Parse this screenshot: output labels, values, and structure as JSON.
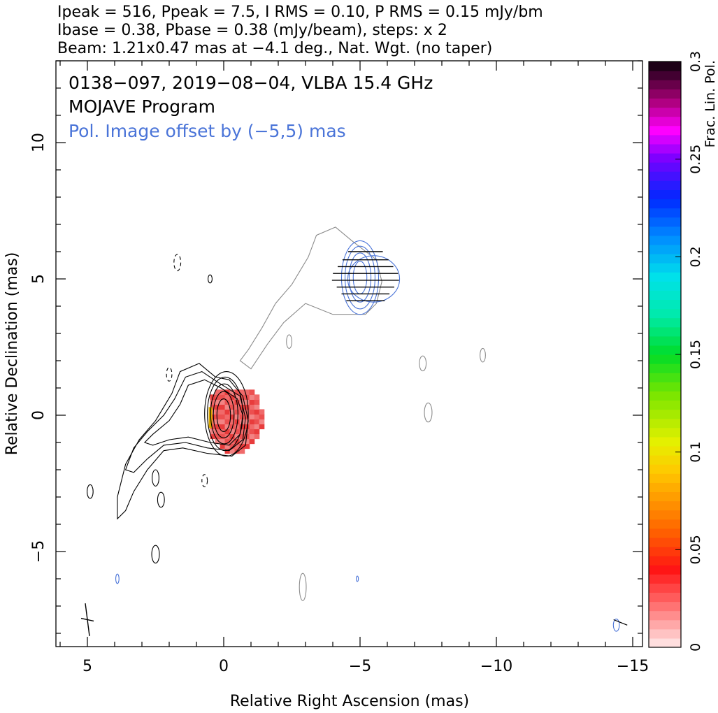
{
  "header": {
    "line1": "Ipeak = 516, Ppeak = 7.5, I RMS = 0.10, P RMS = 0.15 mJy/bm",
    "line2": "Ibase = 0.38, Pbase = 0.38 (mJy/beam), steps: x 2",
    "line3": "Beam: 1.21x0.47 mas at −4.1 deg., Nat. Wgt. (no taper)"
  },
  "plot": {
    "title": "0138−097, 2019−08−04, VLBA 15.4 GHz",
    "subtitle": "MOJAVE Program",
    "note": "Pol. Image offset by (−5,5) mas"
  },
  "colorbar": {
    "label": "Frac. Lin. Pol.",
    "ticks": [
      "0",
      "0.05",
      "0.1",
      "0.15",
      "0.2",
      "0.25",
      "0.3"
    ]
  },
  "chart_data": {
    "type": "contour",
    "title": "0138−097, 2019−08−04, VLBA 15.4 GHz",
    "xlabel": "Relative Right Ascension (mas)",
    "ylabel": "Relative Declination (mas)",
    "xlim": [
      6.1,
      -15.4
    ],
    "ylim": [
      -8.5,
      13.4
    ],
    "xticks": [
      5,
      0,
      -5,
      -10,
      -15
    ],
    "xtick_labels": [
      "5",
      "0",
      "−5",
      "−10",
      "−15"
    ],
    "yticks": [
      -5,
      0,
      5,
      10
    ],
    "ytick_labels": [
      "−5",
      "0",
      "5",
      "10"
    ],
    "x_reversed": true,
    "colorbar": {
      "label": "Frac. Lin. Pol.",
      "range": [
        0,
        0.3
      ]
    },
    "stokes_I": {
      "peak_mJy_per_beam": 516,
      "rms": 0.1,
      "base": 0.38,
      "core_position_mas": [
        0,
        0
      ],
      "core_levels": [
        {
          "x": 0,
          "y": 0,
          "rx": 0.25,
          "ry": 0.6
        },
        {
          "x": 0,
          "y": 0.02,
          "rx": 0.38,
          "ry": 0.85
        },
        {
          "x": -0.02,
          "y": 0.05,
          "rx": 0.5,
          "ry": 1.1
        },
        {
          "x": -0.05,
          "y": 0.05,
          "rx": 0.65,
          "ry": 1.35
        },
        {
          "x": -0.1,
          "y": 0.05,
          "rx": 0.8,
          "ry": 1.55
        }
      ],
      "outer_contours": [
        [
          [
            0.3,
            1.4
          ],
          [
            0.9,
            1.9
          ],
          [
            1.6,
            1.6
          ],
          [
            1.9,
            0.8
          ],
          [
            2.2,
            0.3
          ],
          [
            2.5,
            -0.2
          ],
          [
            3.1,
            -0.9
          ],
          [
            3.6,
            -1.8
          ],
          [
            3.9,
            -3.0
          ],
          [
            3.9,
            -3.8
          ],
          [
            3.6,
            -3.5
          ],
          [
            3.3,
            -2.8
          ],
          [
            2.8,
            -2.0
          ],
          [
            2.2,
            -1.3
          ],
          [
            1.5,
            -1.2
          ],
          [
            0.6,
            -1.4
          ],
          [
            -0.3,
            -1.5
          ],
          [
            -0.8,
            -1.1
          ],
          [
            -0.9,
            -0.2
          ],
          [
            -0.7,
            0.7
          ],
          [
            -0.2,
            1.3
          ]
        ],
        [
          [
            0.2,
            1.2
          ],
          [
            0.8,
            1.6
          ],
          [
            1.4,
            1.4
          ],
          [
            1.8,
            0.6
          ],
          [
            2.2,
            0.0
          ],
          [
            2.8,
            -0.6
          ],
          [
            3.3,
            -1.2
          ],
          [
            3.6,
            -2.0
          ],
          [
            3.3,
            -2.1
          ],
          [
            2.8,
            -1.6
          ],
          [
            2.2,
            -1.1
          ],
          [
            1.4,
            -1.0
          ],
          [
            0.6,
            -1.2
          ],
          [
            -0.2,
            -1.3
          ],
          [
            -0.7,
            -0.9
          ],
          [
            -0.8,
            -0.1
          ],
          [
            -0.6,
            0.7
          ]
        ],
        [
          [
            0.1,
            1.0
          ],
          [
            0.7,
            1.3
          ],
          [
            1.3,
            1.1
          ],
          [
            1.6,
            0.4
          ],
          [
            2.0,
            -0.2
          ],
          [
            2.6,
            -0.7
          ],
          [
            2.9,
            -1.0
          ],
          [
            2.6,
            -1.1
          ],
          [
            2.0,
            -0.9
          ],
          [
            1.3,
            -0.8
          ],
          [
            0.5,
            -1.0
          ],
          [
            -0.2,
            -1.1
          ],
          [
            -0.6,
            -0.7
          ],
          [
            -0.7,
            0.0
          ],
          [
            -0.5,
            0.6
          ]
        ]
      ],
      "jet_extension_mas": [
        4.2,
        -4.0
      ],
      "small_islands": [
        {
          "x": 2.5,
          "y": -2.3,
          "w": 0.25,
          "h": 0.6
        },
        {
          "x": 2.3,
          "y": -3.1,
          "w": 0.25,
          "h": 0.55
        },
        {
          "x": 2.5,
          "y": -5.1,
          "w": 0.28,
          "h": 0.65
        },
        {
          "x": 4.9,
          "y": -2.8,
          "w": 0.22,
          "h": 0.5
        },
        {
          "x": 0.7,
          "y": -2.4,
          "w": 0.2,
          "h": 0.45,
          "dashed": true
        },
        {
          "x": 2.0,
          "y": 1.5,
          "w": 0.2,
          "h": 0.5,
          "dashed": true
        },
        {
          "x": 1.7,
          "y": 5.6,
          "w": 0.25,
          "h": 0.6,
          "dashed": true
        },
        {
          "x": 0.5,
          "y": 5.0,
          "w": 0.15,
          "h": 0.3
        }
      ]
    },
    "polarization": {
      "peak_mJy_per_beam": 7.5,
      "rms": 0.15,
      "base": 0.38,
      "offset_mas": [
        -5,
        5
      ],
      "frac_pol_patch": {
        "ra_range": [
          -1.3,
          0.5
        ],
        "dec_range": [
          -1.4,
          0.8
        ],
        "frac_pol": 0.03
      },
      "evpa_deg": 0,
      "vector_rows_dec": [
        4.2,
        4.45,
        4.7,
        4.95,
        5.2,
        5.45,
        5.7,
        6.0
      ]
    },
    "beam": {
      "major_mas": 1.21,
      "minor_mas": 0.47,
      "pa_deg": -4.1,
      "position_mas": [
        5,
        -7.5
      ]
    }
  }
}
